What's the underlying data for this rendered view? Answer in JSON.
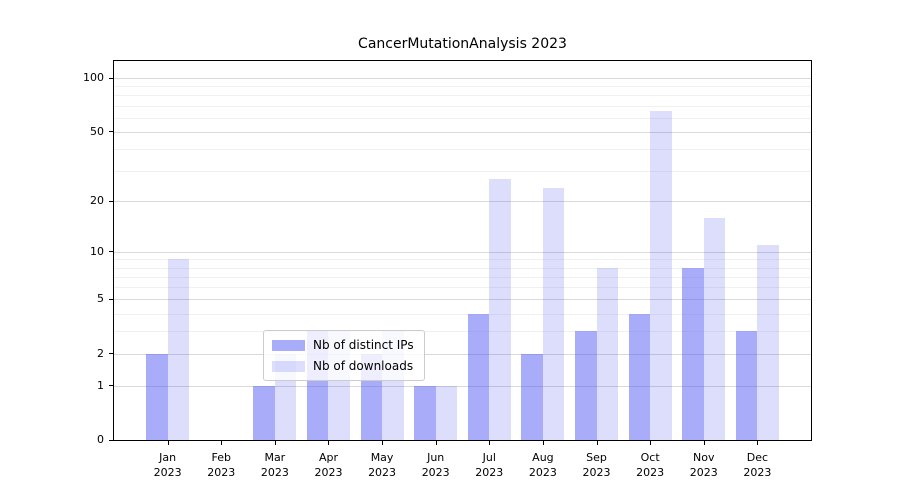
{
  "title": "CancerMutationAnalysis 2023",
  "chart_data": {
    "type": "bar",
    "title": "CancerMutationAnalysis 2023",
    "categories": [
      "Jan 2023",
      "Feb 2023",
      "Mar 2023",
      "Apr 2023",
      "May 2023",
      "Jun 2023",
      "Jul 2023",
      "Aug 2023",
      "Sep 2023",
      "Oct 2023",
      "Nov 2023",
      "Dec 2023"
    ],
    "month_labels": [
      "Jan",
      "Feb",
      "Mar",
      "Apr",
      "May",
      "Jun",
      "Jul",
      "Aug",
      "Sep",
      "Oct",
      "Nov",
      "Dec"
    ],
    "year_label": "2023",
    "series": [
      {
        "name": "Nb of distinct IPs",
        "values": [
          2,
          0,
          1,
          3,
          2,
          1,
          4,
          2,
          3,
          4,
          8,
          3
        ],
        "color": "#a9aaf8",
        "color_rgba": "rgba(84,90,242,0.5)"
      },
      {
        "name": "Nb of downloads",
        "values": [
          9,
          0,
          2,
          3,
          3,
          1,
          27,
          24,
          8,
          65,
          16,
          11
        ],
        "color": "#dcdcfb",
        "color_rgba": "rgba(84,90,242,0.2)"
      }
    ],
    "xlabel": "",
    "ylabel": "",
    "yscale": "log10(value+1)",
    "yticks": [
      0,
      1,
      2,
      5,
      10,
      20,
      50,
      100
    ],
    "yticks_minor": [
      3,
      4,
      6,
      7,
      8,
      9,
      30,
      40,
      60,
      70,
      80,
      90
    ],
    "ylim": [
      0,
      128
    ],
    "grid": true,
    "legend_position": "inside lower center",
    "frame_color": "#000000",
    "major_grid_color": "#d9d9d9",
    "minor_grid_color": "#f0f0f0"
  }
}
